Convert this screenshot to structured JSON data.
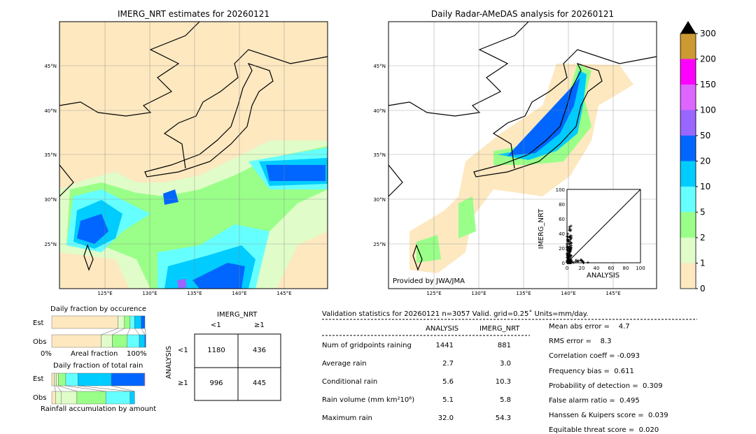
{
  "colors": {
    "c0": "#fde8c0",
    "c1": "#e0fcc8",
    "c2": "#99ff88",
    "c3": "#66ffff",
    "c4": "#00ccff",
    "c5": "#0066ff",
    "c6": "#9966ff",
    "c7": "#dd66ff",
    "c8": "#ff00ff",
    "c9": "#cc9933"
  },
  "chart_data": [
    {
      "type": "heatmap",
      "title": "IMERG_NRT estimates for 20260121",
      "lon_ticks": [
        "125°E",
        "130°E",
        "135°E",
        "140°E",
        "145°E"
      ],
      "lat_ticks": [
        "45°N",
        "40°N",
        "35°N",
        "30°N",
        "25°N"
      ]
    },
    {
      "type": "heatmap",
      "title": "Daily Radar-AMeDAS analysis for 20260121",
      "lon_ticks": [
        "125°E",
        "130°E",
        "135°E",
        "140°E",
        "145°E"
      ],
      "lat_ticks": [
        "45°N",
        "40°N",
        "35°N",
        "30°N",
        "25°N"
      ],
      "credit": "Provided by JWA/JMA"
    },
    {
      "type": "scatter",
      "xlabel": "ANALYSIS",
      "ylabel": "IMERG_NRT",
      "xlim": [
        0,
        100
      ],
      "ylim": [
        0,
        100
      ],
      "ticks": [
        "0",
        "20",
        "40",
        "60",
        "80",
        "100"
      ]
    },
    {
      "type": "colorbar",
      "levels": [
        "0",
        "1",
        "2",
        "5",
        "10",
        "20",
        "50",
        "100",
        "150",
        "200",
        "300"
      ]
    },
    {
      "type": "bar",
      "title": "Daily fraction by occurence",
      "xlabel": "Areal fraction",
      "xmin_label": "0%",
      "xmax_label": "100%",
      "rows": [
        {
          "label": "Est",
          "fractions": [
            0.71,
            0.07,
            0.06,
            0.05,
            0.07,
            0.04
          ]
        },
        {
          "label": "Obs",
          "fractions": [
            0.53,
            0.12,
            0.16,
            0.13,
            0.06,
            0.01
          ]
        }
      ]
    },
    {
      "type": "bar",
      "title": "Daily fraction of total rain",
      "xlabel": "Rainfall accumulation by amount",
      "rows": [
        {
          "label": "Est",
          "fractions": [
            0.03,
            0.02,
            0.02,
            0.08,
            0.13,
            0.36,
            0.35,
            0.01
          ]
        },
        {
          "label": "Obs",
          "fractions": [
            0.04,
            0.06,
            0.17,
            0.31,
            0.26,
            0.05
          ]
        }
      ]
    },
    {
      "type": "table",
      "title": "IMERG_NRT",
      "row_title": "ANALYSIS",
      "col_labels": [
        "<1",
        "≥1"
      ],
      "row_labels": [
        "<1",
        "≥1"
      ],
      "cells": [
        [
          "1180",
          "436"
        ],
        [
          "996",
          "445"
        ]
      ]
    }
  ],
  "stats": {
    "header": "Validation statistics for 20260121  n=3057 Valid. grid=0.25˚ Units=mm/day.",
    "col1": "ANALYSIS",
    "col2": "IMERG_NRT",
    "rows": [
      {
        "label": "Num of gridpoints raining",
        "a": "1441",
        "b": "881"
      },
      {
        "label": "Average rain",
        "a": "2.7",
        "b": "3.0"
      },
      {
        "label": "Conditional rain",
        "a": "5.6",
        "b": "10.3"
      },
      {
        "label": "Rain volume (mm km²10⁶)",
        "a": "5.1",
        "b": "5.8"
      },
      {
        "label": "Maximum rain",
        "a": "32.0",
        "b": "54.3"
      }
    ],
    "scores": [
      "Mean abs error =    4.7",
      "RMS error =    8.3",
      "Correlation coeff = -0.093",
      "Frequency bias =  0.611",
      "Probability of detection =  0.309",
      "False alarm ratio =  0.495",
      "Hanssen & Kuipers score =  0.039",
      "Equitable threat score =  0.020"
    ]
  }
}
